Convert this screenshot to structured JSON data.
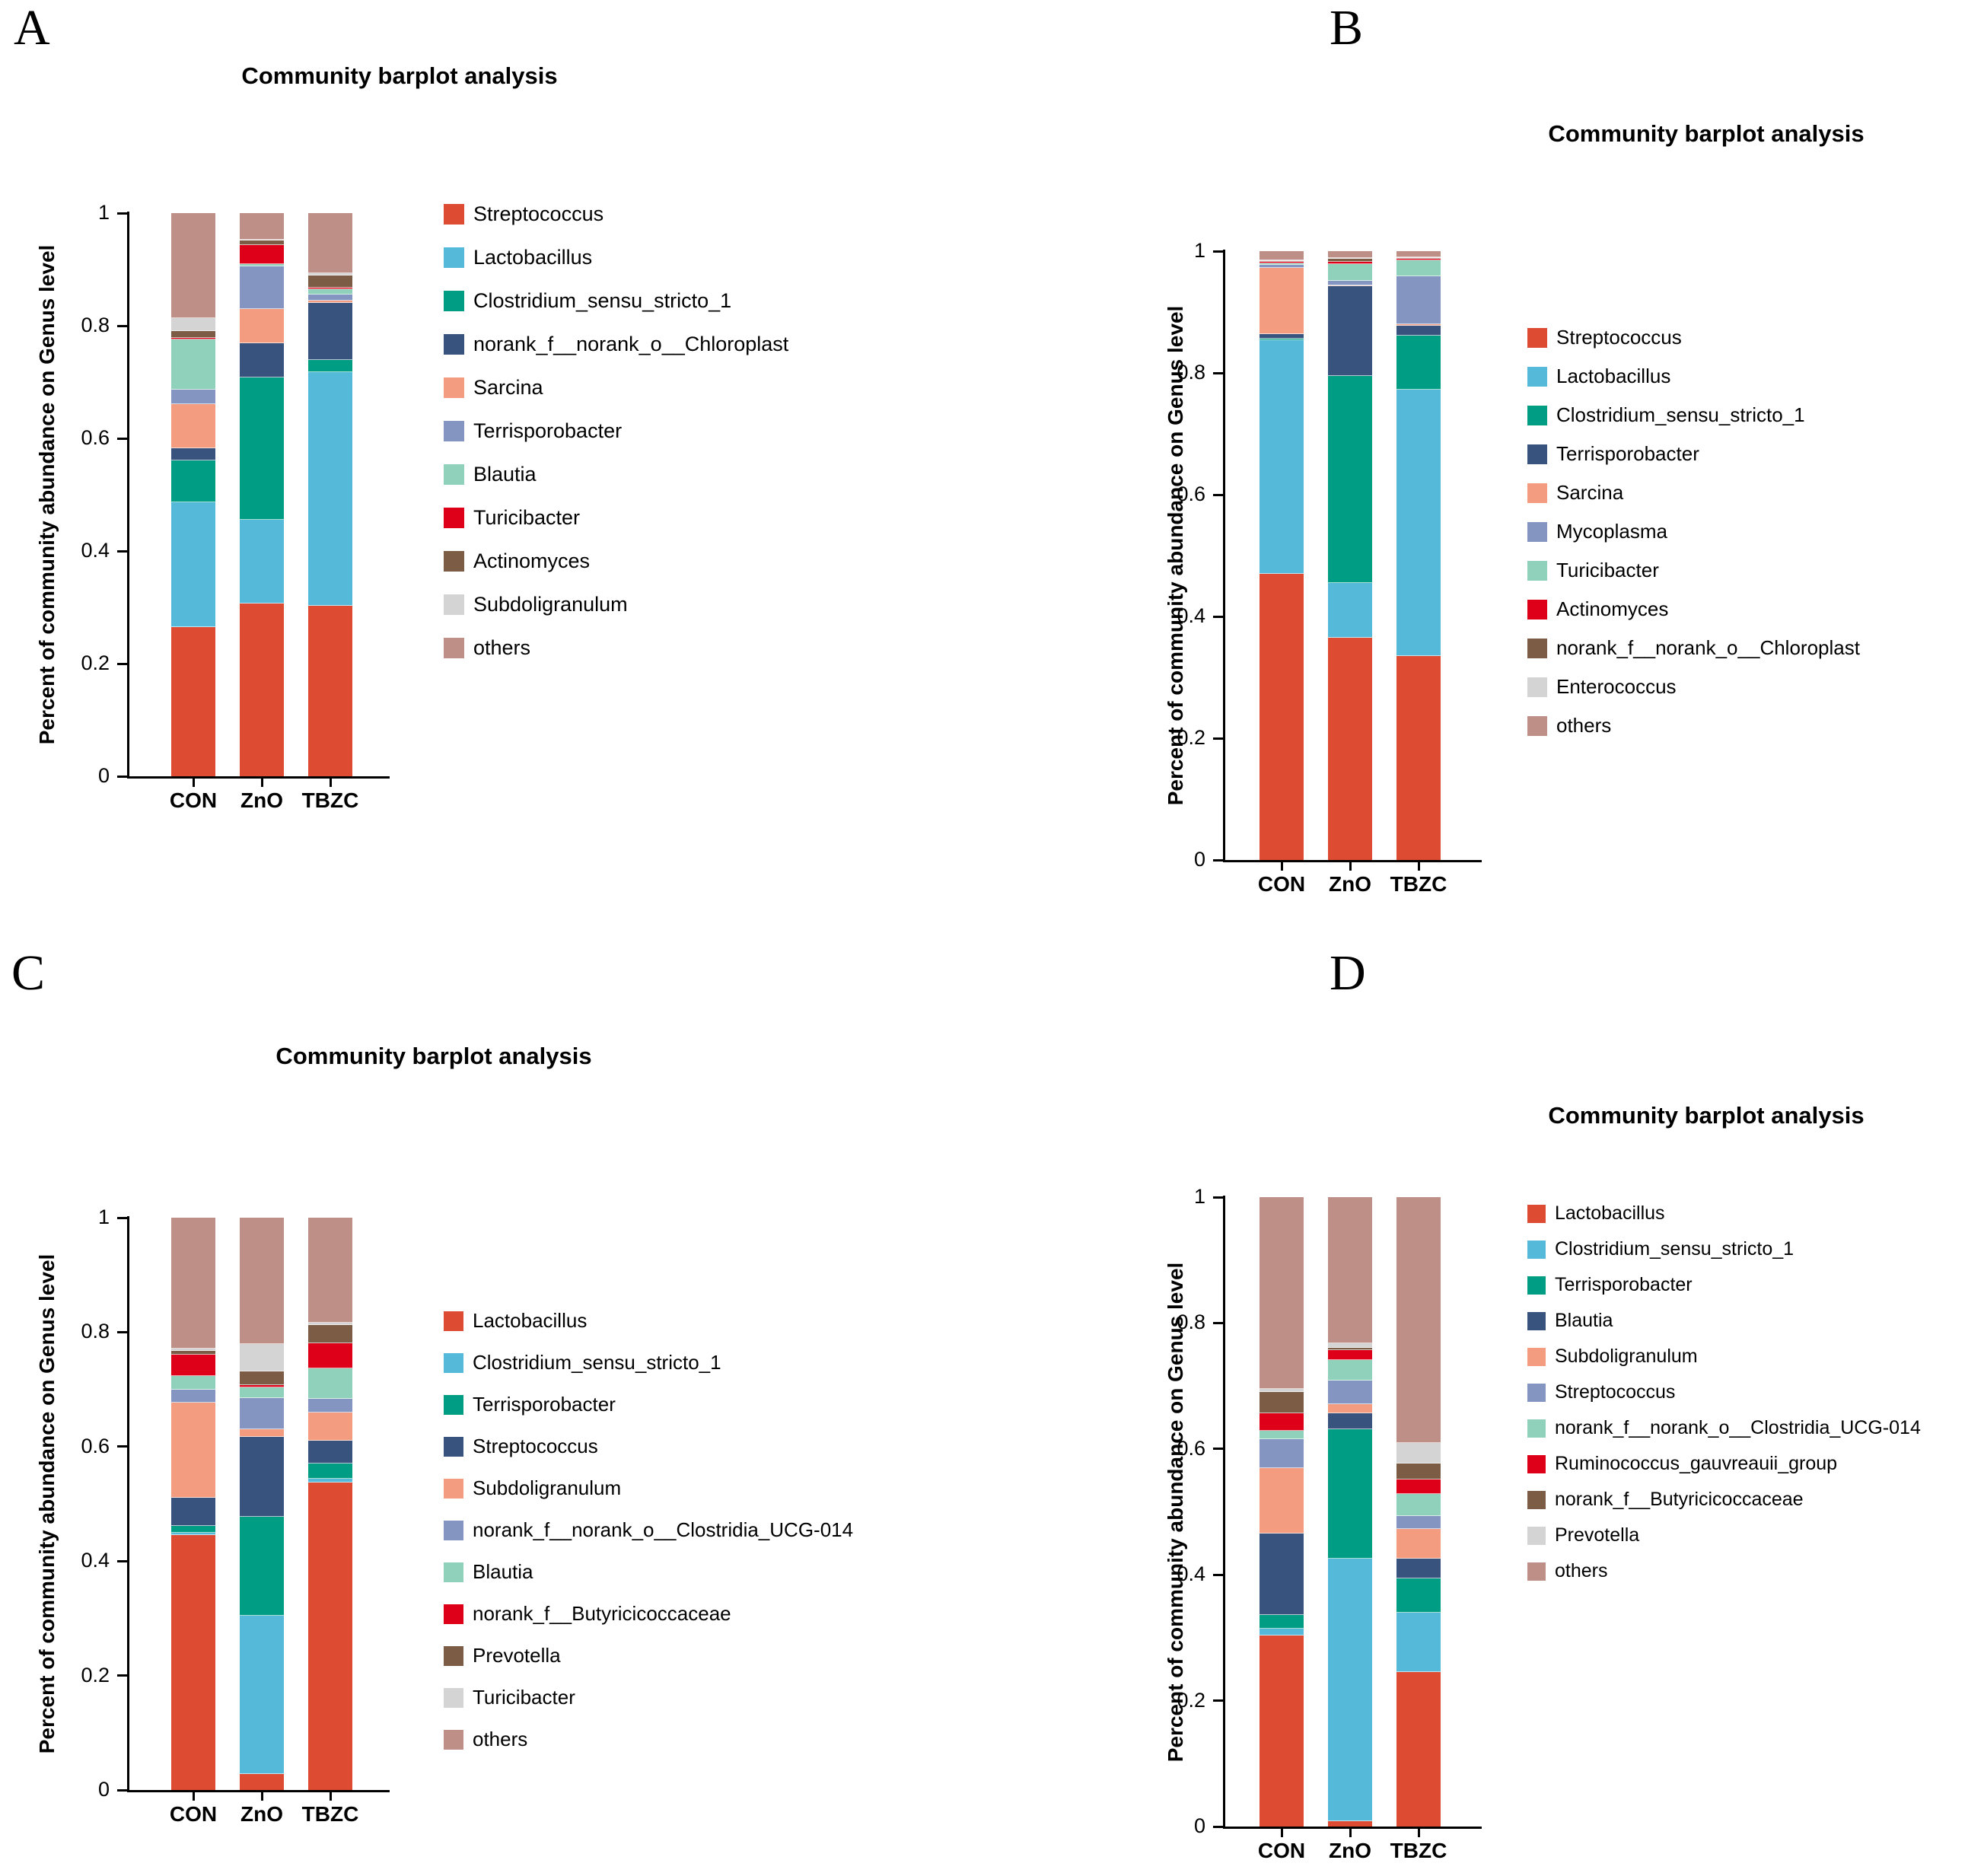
{
  "figure": {
    "panel_letters": [
      "A",
      "B",
      "C",
      "D"
    ],
    "background_color": "#ffffff"
  },
  "panels": [
    {
      "letter": "A",
      "title": "Community barplot analysis",
      "ylabel": "Percent of community abundance on Genus level",
      "categories": [
        "CON",
        "ZnO",
        "TBZC"
      ],
      "yticks": [
        "1",
        "0.8",
        "0.6",
        "0.4",
        "0.2",
        "0"
      ]
    },
    {
      "letter": "B",
      "title": "Community barplot analysis",
      "ylabel": "Percent of community abundance on Genus level",
      "categories": [
        "CON",
        "ZnO",
        "TBZC"
      ],
      "yticks": [
        "1",
        "0.8",
        "0.6",
        "0.4",
        "0.2",
        "0"
      ]
    },
    {
      "letter": "C",
      "title": "Community barplot analysis",
      "ylabel": "Percent of community abundance on Genus level",
      "categories": [
        "CON",
        "ZnO",
        "TBZC"
      ],
      "yticks": [
        "1",
        "0.8",
        "0.6",
        "0.4",
        "0.2",
        "0"
      ]
    },
    {
      "letter": "D",
      "title": "Community barplot analysis",
      "ylabel": "Percent of community abundance on Genus level",
      "categories": [
        "CON",
        "ZnO",
        "TBZC"
      ],
      "yticks": [
        "1",
        "0.8",
        "0.6",
        "0.4",
        "0.2",
        "0"
      ]
    }
  ],
  "chart_data": [
    {
      "type": "bar",
      "stacked": true,
      "panel": "A",
      "title": "Community barplot analysis",
      "xlabel": "",
      "ylabel": "Percent of community abundance on Genus level",
      "ylim": [
        0,
        1
      ],
      "yticks": [
        1,
        0.8,
        0.6,
        0.4,
        0.2,
        0
      ],
      "categories": [
        "CON",
        "ZnO",
        "TBZC"
      ],
      "legend_position": "right",
      "grid": false,
      "series": [
        {
          "name": "Streptococcus",
          "color": "#DD4B32",
          "values": [
            0.265,
            0.307,
            0.303
          ]
        },
        {
          "name": "Lactobacillus",
          "color": "#55B9D9",
          "values": [
            0.222,
            0.149,
            0.414
          ]
        },
        {
          "name": "Clostridium_sensu_stricto_1",
          "color": "#009D85",
          "values": [
            0.074,
            0.252,
            0.022
          ]
        },
        {
          "name": "norank_f__norank_o__Chloroplast",
          "color": "#39537F",
          "values": [
            0.021,
            0.061,
            0.102
          ]
        },
        {
          "name": "Sarcina",
          "color": "#F39C7F",
          "values": [
            0.079,
            0.061,
            0.003
          ]
        },
        {
          "name": "Terrisporobacter",
          "color": "#8495C1",
          "values": [
            0.026,
            0.076,
            0.012
          ]
        },
        {
          "name": "Blautia",
          "color": "#8FD1BA",
          "values": [
            0.089,
            0.003,
            0.009
          ]
        },
        {
          "name": "Turicibacter",
          "color": "#DE0018",
          "values": [
            0.002,
            0.035,
            0.003
          ]
        },
        {
          "name": "Actinomyces",
          "color": "#7C5C44",
          "values": [
            0.013,
            0.007,
            0.021
          ]
        },
        {
          "name": "Subdoligranulum",
          "color": "#D4D4D4",
          "values": [
            0.022,
            0.002,
            0.004
          ]
        },
        {
          "name": "others",
          "color": "#BD8F87",
          "values": [
            0.187,
            0.047,
            0.107
          ]
        }
      ]
    },
    {
      "type": "bar",
      "stacked": true,
      "panel": "B",
      "title": "Community barplot analysis",
      "xlabel": "",
      "ylabel": "Percent of community abundance on Genus level",
      "ylim": [
        0,
        1
      ],
      "yticks": [
        1,
        0.8,
        0.6,
        0.4,
        0.2,
        0
      ],
      "categories": [
        "CON",
        "ZnO",
        "TBZC"
      ],
      "legend_position": "right",
      "grid": false,
      "series": [
        {
          "name": "Streptococcus",
          "color": "#DD4B32",
          "values": [
            0.47,
            0.365,
            0.335
          ]
        },
        {
          "name": "Lactobacillus",
          "color": "#55B9D9",
          "values": [
            0.384,
            0.09,
            0.437
          ]
        },
        {
          "name": "Clostridium_sensu_stricto_1",
          "color": "#009D85",
          "values": [
            0.002,
            0.34,
            0.089
          ]
        },
        {
          "name": "Terrisporobacter",
          "color": "#39537F",
          "values": [
            0.008,
            0.147,
            0.017
          ]
        },
        {
          "name": "Sarcina",
          "color": "#F39C7F",
          "values": [
            0.108,
            0.002,
            0.002
          ]
        },
        {
          "name": "Mycoplasma",
          "color": "#8495C1",
          "values": [
            0.006,
            0.007,
            0.079
          ]
        },
        {
          "name": "Turicibacter",
          "color": "#8FD1BA",
          "values": [
            0.002,
            0.028,
            0.026
          ]
        },
        {
          "name": "Actinomyces",
          "color": "#DE0018",
          "values": [
            0.003,
            0.004,
            0.003
          ]
        },
        {
          "name": "norank_f__norank_o__Chloroplast",
          "color": "#7C5C44",
          "values": [
            0.001,
            0.004,
            0.001
          ]
        },
        {
          "name": "Enterococcus",
          "color": "#D4D4D4",
          "values": [
            0.001,
            0.001,
            0.001
          ]
        },
        {
          "name": "others",
          "color": "#BD8F87",
          "values": [
            0.015,
            0.012,
            0.01
          ]
        }
      ]
    },
    {
      "type": "bar",
      "stacked": true,
      "panel": "C",
      "title": "Community barplot analysis",
      "xlabel": "",
      "ylabel": "Percent of community abundance on Genus level",
      "ylim": [
        0,
        1
      ],
      "yticks": [
        1,
        0.8,
        0.6,
        0.4,
        0.2,
        0
      ],
      "categories": [
        "CON",
        "ZnO",
        "TBZC"
      ],
      "legend_position": "right",
      "grid": false,
      "series": [
        {
          "name": "Lactobacillus",
          "color": "#DD4B32",
          "values": [
            0.445,
            0.028,
            0.537
          ]
        },
        {
          "name": "Clostridium_sensu_stricto_1",
          "color": "#55B9D9",
          "values": [
            0.005,
            0.276,
            0.007
          ]
        },
        {
          "name": "Terrisporobacter",
          "color": "#009D85",
          "values": [
            0.012,
            0.173,
            0.027
          ]
        },
        {
          "name": "Streptococcus",
          "color": "#39537F",
          "values": [
            0.049,
            0.14,
            0.04
          ]
        },
        {
          "name": "Subdoligranulum",
          "color": "#F39C7F",
          "values": [
            0.166,
            0.014,
            0.048
          ]
        },
        {
          "name": "norank_f__norank_o__Clostridia_UCG-014",
          "color": "#8495C1",
          "values": [
            0.022,
            0.054,
            0.025
          ]
        },
        {
          "name": "Blautia",
          "color": "#8FD1BA",
          "values": [
            0.025,
            0.019,
            0.053
          ]
        },
        {
          "name": "norank_f__Butyricicoccaceae",
          "color": "#DE0018",
          "values": [
            0.037,
            0.004,
            0.044
          ]
        },
        {
          "name": "Prevotella",
          "color": "#7C5C44",
          "values": [
            0.007,
            0.024,
            0.031
          ]
        },
        {
          "name": "Turicibacter",
          "color": "#D4D4D4",
          "values": [
            0.004,
            0.047,
            0.005
          ]
        },
        {
          "name": "others",
          "color": "#BD8F87",
          "values": [
            0.228,
            0.221,
            0.183
          ]
        }
      ]
    },
    {
      "type": "bar",
      "stacked": true,
      "panel": "D",
      "title": "Community barplot analysis",
      "xlabel": "",
      "ylabel": "Percent of community abundance on Genus level",
      "ylim": [
        0,
        1
      ],
      "yticks": [
        1,
        0.8,
        0.6,
        0.4,
        0.2,
        0
      ],
      "categories": [
        "CON",
        "ZnO",
        "TBZC"
      ],
      "legend_position": "right",
      "grid": false,
      "series": [
        {
          "name": "Lactobacillus",
          "color": "#DD4B32",
          "values": [
            0.304,
            0.008,
            0.245
          ]
        },
        {
          "name": "Clostridium_sensu_stricto_1",
          "color": "#55B9D9",
          "values": [
            0.01,
            0.418,
            0.095
          ]
        },
        {
          "name": "Terrisporobacter",
          "color": "#009D85",
          "values": [
            0.022,
            0.205,
            0.054
          ]
        },
        {
          "name": "Blautia",
          "color": "#39537F",
          "values": [
            0.13,
            0.026,
            0.032
          ]
        },
        {
          "name": "Subdoligranulum",
          "color": "#F39C7F",
          "values": [
            0.103,
            0.014,
            0.047
          ]
        },
        {
          "name": "Streptococcus",
          "color": "#8495C1",
          "values": [
            0.046,
            0.038,
            0.02
          ]
        },
        {
          "name": "norank_f__norank_o__Clostridia_UCG-014",
          "color": "#8FD1BA",
          "values": [
            0.014,
            0.032,
            0.036
          ]
        },
        {
          "name": "Ruminococcus_gauvreauii_group",
          "color": "#DE0018",
          "values": [
            0.028,
            0.016,
            0.022
          ]
        },
        {
          "name": "norank_f__Butyricicoccaceae",
          "color": "#7C5C44",
          "values": [
            0.033,
            0.004,
            0.026
          ]
        },
        {
          "name": "Prevotella",
          "color": "#D4D4D4",
          "values": [
            0.006,
            0.007,
            0.032
          ]
        },
        {
          "name": "others",
          "color": "#BD8F87",
          "values": [
            0.304,
            0.232,
            0.391
          ]
        }
      ]
    }
  ]
}
